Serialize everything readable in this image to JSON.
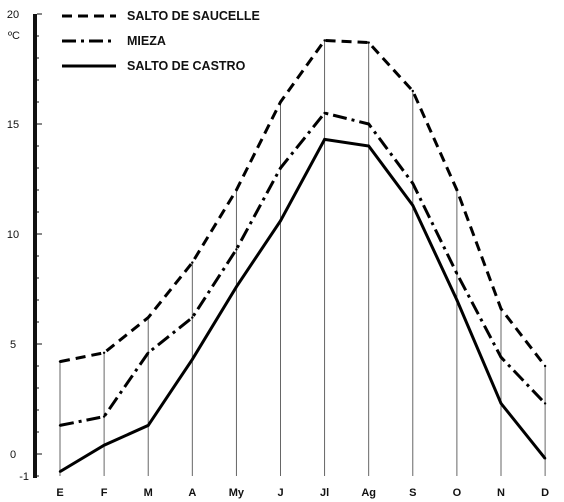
{
  "chart_data": {
    "type": "line",
    "ylabel": "ºC",
    "ylim": [
      -1,
      20
    ],
    "yticks": [
      0,
      5,
      10,
      15,
      20
    ],
    "ytick_labels": [
      "0",
      "5",
      "10",
      "15",
      "20"
    ],
    "extra_tick_label": "-1",
    "categories": [
      "E",
      "F",
      "M",
      "A",
      "My",
      "J",
      "Jl",
      "Ag",
      "S",
      "O",
      "N",
      "D"
    ],
    "grid": "vertical",
    "legend_position": "top-left",
    "series": [
      {
        "name": "SALTO DE SAUCELLE",
        "style": "dashed",
        "values": [
          4.2,
          4.6,
          6.2,
          8.7,
          12.0,
          16.0,
          18.8,
          18.7,
          16.5,
          12.0,
          6.6,
          4.0
        ]
      },
      {
        "name": "MIEZA",
        "style": "dash-dot",
        "values": [
          1.3,
          1.7,
          4.6,
          6.2,
          9.3,
          13.0,
          15.5,
          15.0,
          12.3,
          8.2,
          4.4,
          2.3
        ]
      },
      {
        "name": "SALTO DE CASTRO",
        "style": "solid",
        "values": [
          -0.8,
          0.4,
          1.3,
          4.3,
          7.6,
          10.6,
          14.3,
          14.0,
          11.3,
          7.0,
          2.3,
          -0.2
        ]
      }
    ]
  }
}
